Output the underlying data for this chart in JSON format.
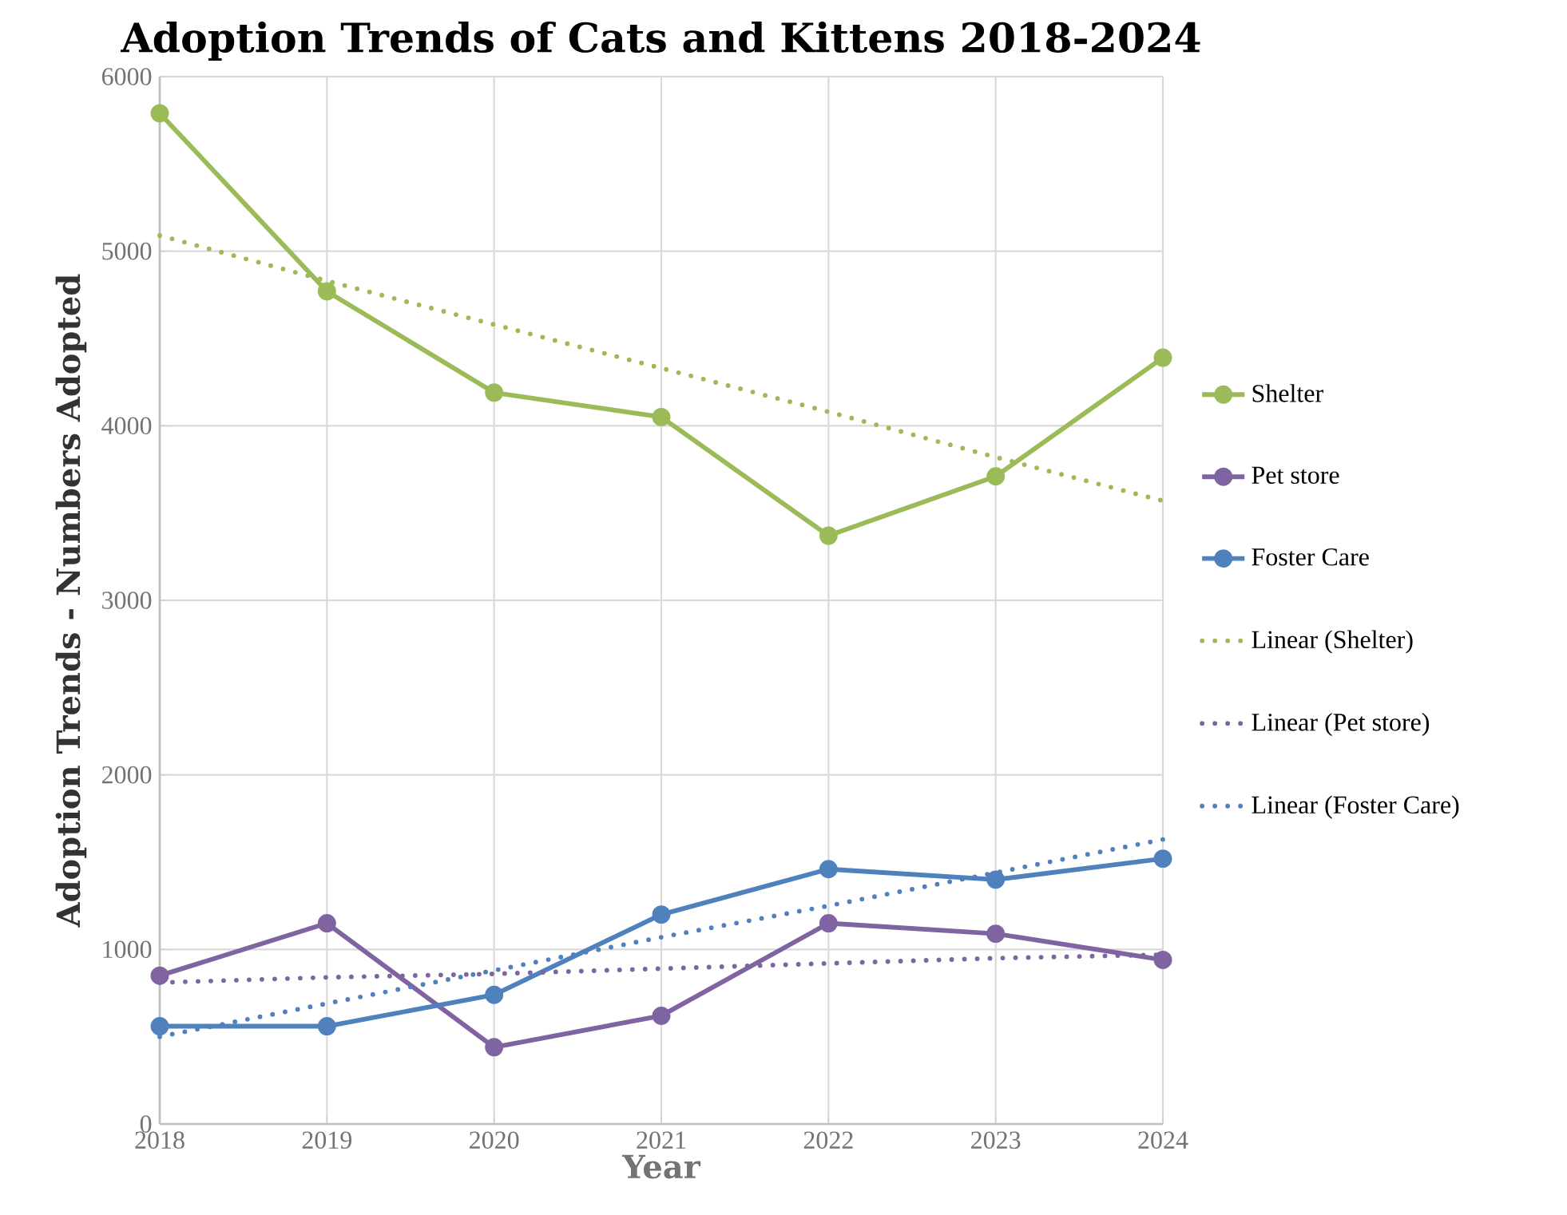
{
  "chart_data": {
    "type": "line",
    "title": "Adoption Trends of Cats and Kittens 2018-2024",
    "xlabel": "Year",
    "ylabel": "Adoption Trends - Numbers Adopted",
    "x": [
      2018,
      2019,
      2020,
      2021,
      2022,
      2023,
      2024
    ],
    "series": [
      {
        "name": "Shelter",
        "color": "#9bbb59",
        "values": [
          5790,
          4770,
          4190,
          4050,
          3370,
          3710,
          4390
        ]
      },
      {
        "name": "Pet store",
        "color": "#8064a2",
        "values": [
          850,
          1150,
          440,
          620,
          1150,
          1090,
          940
        ]
      },
      {
        "name": "Foster Care",
        "color": "#4f81bd",
        "values": [
          560,
          560,
          740,
          1200,
          1460,
          1400,
          1520
        ]
      },
      {
        "name": "Linear (Shelter)",
        "color": "#9bbb59",
        "values": [
          5090,
          4830,
          4580,
          4330,
          4080,
          3820,
          3570
        ],
        "line_style": "dotted",
        "marker": "none"
      },
      {
        "name": "Linear (Pet store)",
        "color": "#8064a2",
        "values": [
          810,
          840,
          860,
          890,
          920,
          950,
          970
        ],
        "line_style": "dotted",
        "marker": "none"
      },
      {
        "name": "Linear (Foster Care)",
        "color": "#4f81bd",
        "values": [
          500,
          690,
          880,
          1070,
          1250,
          1440,
          1630
        ],
        "line_style": "dotted",
        "marker": "none"
      }
    ],
    "xlim": [
      2018,
      2024
    ],
    "xticks": [
      2018,
      2019,
      2020,
      2021,
      2022,
      2023,
      2024
    ],
    "ylim": [
      0,
      6000
    ],
    "yticks": [
      0,
      1000,
      2000,
      3000,
      4000,
      5000,
      6000
    ],
    "grid": true,
    "legend": "right",
    "marker": "circle",
    "line_style": "solid"
  }
}
